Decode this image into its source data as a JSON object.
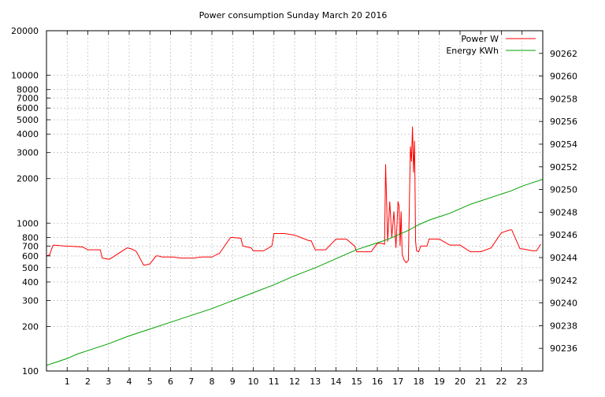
{
  "chart_data": {
    "type": "line",
    "title": "Power consumption Sunday March 20 2016",
    "xlabel": "",
    "ylabel": "",
    "y2label": "",
    "x_range": [
      0,
      24
    ],
    "x_ticks": [
      "1",
      "2",
      "3",
      "4",
      "5",
      "6",
      "7",
      "8",
      "9",
      "10",
      "11",
      "12",
      "13",
      "14",
      "15",
      "16",
      "17",
      "18",
      "19",
      "20",
      "21",
      "22",
      "23"
    ],
    "y_range": [
      100,
      20000
    ],
    "y_scale": "log",
    "y_ticks": [
      "100",
      "200",
      "300",
      "400",
      "500",
      "600",
      "700",
      "800",
      "1000",
      "2000",
      "3000",
      "4000",
      "5000",
      "6000",
      "7000",
      "8000",
      "10000",
      "20000"
    ],
    "y2_range": [
      90234,
      90264
    ],
    "y2_ticks": [
      "90236",
      "90238",
      "90240",
      "90242",
      "90244",
      "90246",
      "90248",
      "90250",
      "90252",
      "90254",
      "90256",
      "90258",
      "90260",
      "90262"
    ],
    "grid": true,
    "legend_position": "top-right",
    "colors": {
      "power": "#ff0000",
      "energy": "#00a000",
      "grid": "#999999"
    },
    "series": [
      {
        "name": "Power W",
        "axis": "y",
        "color": "#ff0000",
        "x": [
          0.0,
          0.15,
          0.3,
          0.35,
          0.9,
          1.0,
          1.7,
          1.75,
          2.0,
          2.6,
          2.7,
          3.0,
          3.05,
          3.9,
          4.1,
          4.3,
          4.35,
          4.7,
          4.75,
          5.0,
          5.3,
          5.4,
          5.6,
          6.0,
          6.1,
          6.5,
          6.6,
          7.0,
          7.1,
          7.5,
          8.0,
          8.3,
          8.35,
          8.9,
          9.0,
          9.4,
          9.5,
          9.9,
          10.0,
          10.5,
          10.9,
          11.0,
          11.5,
          12.0,
          12.7,
          12.8,
          13.0,
          13.5,
          14.0,
          14.5,
          14.9,
          15.0,
          15.7,
          16.0,
          16.2,
          16.35,
          16.4,
          16.5,
          16.6,
          16.7,
          16.8,
          16.9,
          17.0,
          17.05,
          17.1,
          17.15,
          17.2,
          17.3,
          17.4,
          17.5,
          17.6,
          17.65,
          17.7,
          17.75,
          17.8,
          17.85,
          17.9,
          18.0,
          18.1,
          18.4,
          18.5,
          19.0,
          19.5,
          20.0,
          20.5,
          21.0,
          21.5,
          22.0,
          22.4,
          22.5,
          22.9,
          23.0,
          23.5,
          23.7,
          23.9
        ],
        "values": [
          600,
          610,
          700,
          710,
          700,
          700,
          690,
          690,
          660,
          660,
          580,
          570,
          570,
          680,
          670,
          650,
          640,
          520,
          520,
          530,
          600,
          600,
          590,
          590,
          590,
          580,
          580,
          580,
          580,
          590,
          590,
          620,
          620,
          800,
          800,
          790,
          700,
          680,
          650,
          650,
          700,
          850,
          850,
          830,
          760,
          760,
          660,
          660,
          780,
          780,
          700,
          640,
          640,
          730,
          730,
          720,
          2500,
          750,
          1400,
          800,
          1200,
          680,
          1400,
          1300,
          700,
          1200,
          620,
          560,
          540,
          560,
          3300,
          2600,
          4500,
          2200,
          3600,
          750,
          650,
          640,
          700,
          700,
          780,
          780,
          710,
          710,
          640,
          640,
          680,
          860,
          900,
          900,
          670,
          670,
          650,
          650,
          720
        ]
      },
      {
        "name": "Energy KWh",
        "axis": "y2",
        "color": "#00a000",
        "x": [
          0,
          0.5,
          1,
          1.5,
          2,
          3,
          4,
          5,
          6,
          7,
          8,
          9,
          10,
          11,
          12,
          13,
          14,
          15,
          16,
          16.5,
          17,
          17.5,
          18,
          18.5,
          19,
          19.5,
          20,
          20.5,
          21,
          21.5,
          22,
          22.5,
          23,
          23.5,
          24
        ],
        "values": [
          90234.5,
          90234.8,
          90235.1,
          90235.5,
          90235.8,
          90236.4,
          90237.1,
          90237.7,
          90238.3,
          90238.9,
          90239.5,
          90240.2,
          90240.9,
          90241.6,
          90242.4,
          90243.1,
          90243.9,
          90244.7,
          90245.3,
          90245.6,
          90246.0,
          90246.4,
          90246.9,
          90247.3,
          90247.6,
          90247.9,
          90248.3,
          90248.7,
          90249.0,
          90249.3,
          90249.6,
          90249.9,
          90250.3,
          90250.6,
          90250.9
        ]
      }
    ]
  }
}
